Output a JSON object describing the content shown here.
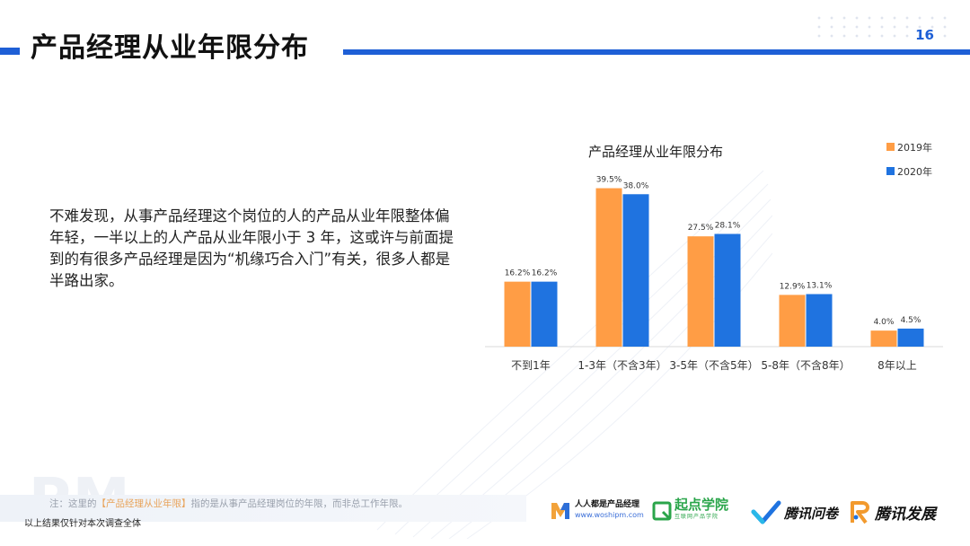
{
  "header": {
    "title": "产品经理从业年限分布",
    "page_number": "16"
  },
  "body": {
    "paragraph": "不难发现，从事产品经理这个岗位的人的产品从业年限整体偏年轻，一半以上的人产品从业年限小于 3 年，这或许与前面提到的有很多产品经理是因为“机缘巧合入门”有关，很多人都是半路出家。"
  },
  "chart_data": {
    "type": "bar",
    "title": "产品经理从业年限分布",
    "categories": [
      "不到1年",
      "1-3年（不含3年）",
      "3-5年（不含5年）",
      "5-8年（不含8年）",
      "8年以上"
    ],
    "series": [
      {
        "name": "2019年",
        "values": [
          16.2,
          39.5,
          27.5,
          12.9,
          4.0
        ],
        "labels": [
          "16.2%",
          "39.5%",
          "27.5%",
          "12.9%",
          "4.0%"
        ],
        "color": "#ff9d45"
      },
      {
        "name": "2020年",
        "values": [
          16.2,
          38.0,
          28.1,
          13.1,
          4.5
        ],
        "labels": [
          "16.2%",
          "38.0%",
          "28.1%",
          "13.1%",
          "4.5%"
        ],
        "color": "#1f73e0"
      }
    ],
    "ylim": [
      0,
      45
    ],
    "grid": false,
    "legend": "top-right"
  },
  "footer": {
    "note_prefix": "注：这里的",
    "note_highlight": "【产品经理从业年限】",
    "note_suffix": "指的是从事产品经理岗位的年限，而非总工作年限。",
    "scope_note": "以上结果仅针对本次调查全体",
    "watermark": "PM",
    "logos": {
      "woshipm_name": "人人都是产品经理",
      "woshipm_url": "www.woshipm.com",
      "qidian_name": "起点学院",
      "qidian_sub": "互联网产品学院",
      "wenjuan_name": "腾讯问卷",
      "fazhan_name": "腾讯发展"
    }
  },
  "colors": {
    "accent": "#1e5fd6",
    "series_2019": "#ff9d45",
    "series_2020": "#1f73e0"
  }
}
